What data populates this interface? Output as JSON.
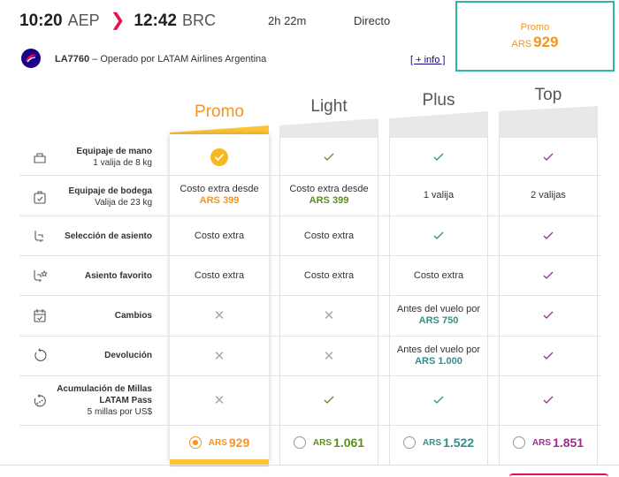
{
  "header": {
    "dep_time": "10:20",
    "dep_code": "AEP",
    "arr_time": "12:42",
    "arr_code": "BRC",
    "duration": "2h 22m",
    "stops": "Directo",
    "flight_number": "LA7760",
    "operated_by": "– Operado por LATAM Airlines Argentina",
    "more_info": "[ + info ]"
  },
  "selected": {
    "label": "Promo",
    "currency": "ARS",
    "price": "929"
  },
  "fares": [
    {
      "name": "Promo",
      "color": "#f6941e"
    },
    {
      "name": "Light",
      "color": "#5a8f1b"
    },
    {
      "name": "Plus",
      "color": "#2f8f8a"
    },
    {
      "name": "Top",
      "color": "#9c2d8c"
    }
  ],
  "features": [
    {
      "title": "Equipaje de mano",
      "sub": "1 valija de 8 kg",
      "icon": "hand-luggage-icon"
    },
    {
      "title": "Equipaje de bodega",
      "sub": "Valija de 23 kg",
      "icon": "checked-bag-icon"
    },
    {
      "title": "Selección de asiento",
      "sub": "",
      "icon": "seat-icon"
    },
    {
      "title": "Asiento favorito",
      "sub": "",
      "icon": "favorite-seat-icon"
    },
    {
      "title": "Cambios",
      "sub": "",
      "icon": "calendar-change-icon"
    },
    {
      "title": "Devolución",
      "sub": "",
      "icon": "refund-icon"
    },
    {
      "title": "Acumulación de Millas LATAM Pass",
      "sub": "5 millas por US$",
      "icon": "miles-icon"
    }
  ],
  "cells": {
    "promo": {
      "baggage_text": "Costo extra desde",
      "baggage_price": "ARS 399",
      "seat": "Costo extra",
      "fav_seat": "Costo extra"
    },
    "light": {
      "baggage_text": "Costo extra desde",
      "baggage_price": "ARS 399",
      "seat": "Costo extra",
      "fav_seat": "Costo extra"
    },
    "plus": {
      "baggage": "1 valija",
      "fav_seat": "Costo extra",
      "changes_text": "Antes del vuelo por",
      "changes_price": "ARS 750",
      "refund_text": "Antes del vuelo por",
      "refund_price": "ARS 1.000"
    },
    "top": {
      "baggage": "2 valijas"
    }
  },
  "prices": [
    {
      "currency": "ARS",
      "amount": "929",
      "selected": true
    },
    {
      "currency": "ARS",
      "amount": "1.061",
      "selected": false
    },
    {
      "currency": "ARS",
      "amount": "1.522",
      "selected": false
    },
    {
      "currency": "ARS",
      "amount": "1.851",
      "selected": false
    }
  ]
}
